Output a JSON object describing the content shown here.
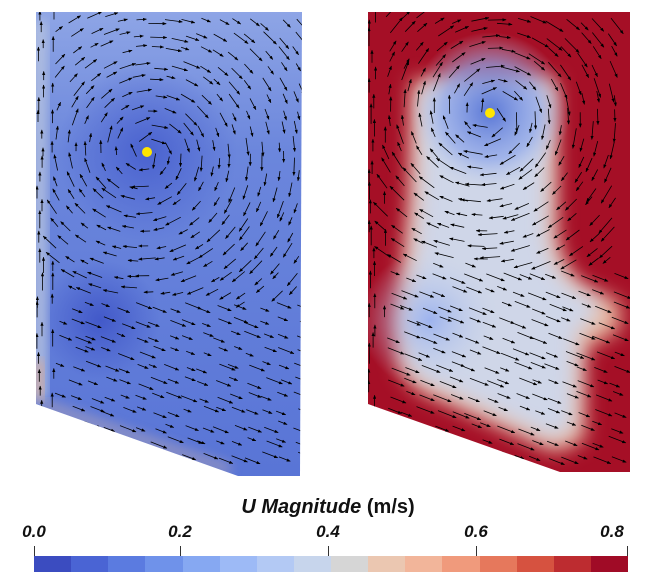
{
  "colorbar": {
    "title_italic": "U Magnitude",
    "title_unit": "(m/s)",
    "ticks": [
      "0.0",
      "0.2",
      "0.4",
      "0.6",
      "0.8"
    ],
    "tick_values": [
      0.0,
      0.2,
      0.4,
      0.6,
      0.8
    ],
    "range": [
      0.0,
      0.8
    ],
    "colors": [
      "#3b4cc0",
      "#4a64d4",
      "#5b7be0",
      "#6f92ea",
      "#86a8f2",
      "#9dbaf6",
      "#b3c9f4",
      "#c7d5ec",
      "#d6d6d6",
      "#ebc7b1",
      "#f2b59a",
      "#f09a7c",
      "#e6785c",
      "#d65240",
      "#bd2c30",
      "#a00b26"
    ]
  },
  "panels": [
    {
      "name": "left-flow-field",
      "description_colormap": "mostly-low",
      "probe_color": "#ffe600"
    },
    {
      "name": "right-flow-field",
      "description_colormap": "high-at-walls",
      "probe_color": "#ffe600"
    }
  ]
}
